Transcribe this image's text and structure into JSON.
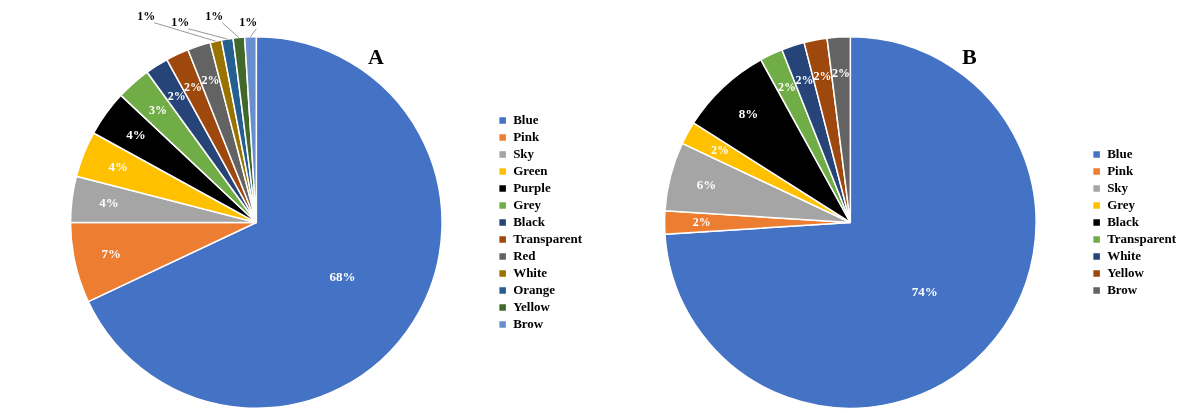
{
  "chart_data": [
    {
      "type": "pie",
      "title": "A",
      "legend": "right",
      "categories": [
        "Blue",
        "Pink",
        "Sky",
        "Green",
        "Purple",
        "Grey",
        "Black",
        "Transparent",
        "Red",
        "White",
        "Orange",
        "Yellow",
        "Brow"
      ],
      "values": [
        68,
        7,
        4,
        4,
        4,
        3,
        2,
        2,
        2,
        1,
        1,
        1,
        1
      ],
      "value_labels": [
        "68%",
        "7%",
        "4%",
        "4%",
        "4%",
        "3%",
        "2%",
        "2%",
        "2%",
        "1%",
        "1%",
        "1%",
        "1%"
      ],
      "colors": [
        "#4472c4",
        "#ed7d31",
        "#a5a5a5",
        "#ffc000",
        "#000000",
        "#70ad47",
        "#264478",
        "#9e480e",
        "#636363",
        "#997300",
        "#255e91",
        "#43682b",
        "#698ed0"
      ]
    },
    {
      "type": "pie",
      "title": "B",
      "legend": "right",
      "categories": [
        "Blue",
        "Pink",
        "Sky",
        "Grey",
        "Black",
        "Transparent",
        "White",
        "Yellow",
        "Brow"
      ],
      "values": [
        74,
        2,
        6,
        2,
        8,
        2,
        2,
        2,
        2
      ],
      "value_labels": [
        "74%",
        "2%",
        "6%",
        "2%",
        "8%",
        "2%",
        "2%",
        "2%",
        "2%"
      ],
      "colors": [
        "#4472c4",
        "#ed7d31",
        "#a5a5a5",
        "#ffc000",
        "#000000",
        "#70ad47",
        "#264478",
        "#9e480e",
        "#636363"
      ]
    }
  ]
}
